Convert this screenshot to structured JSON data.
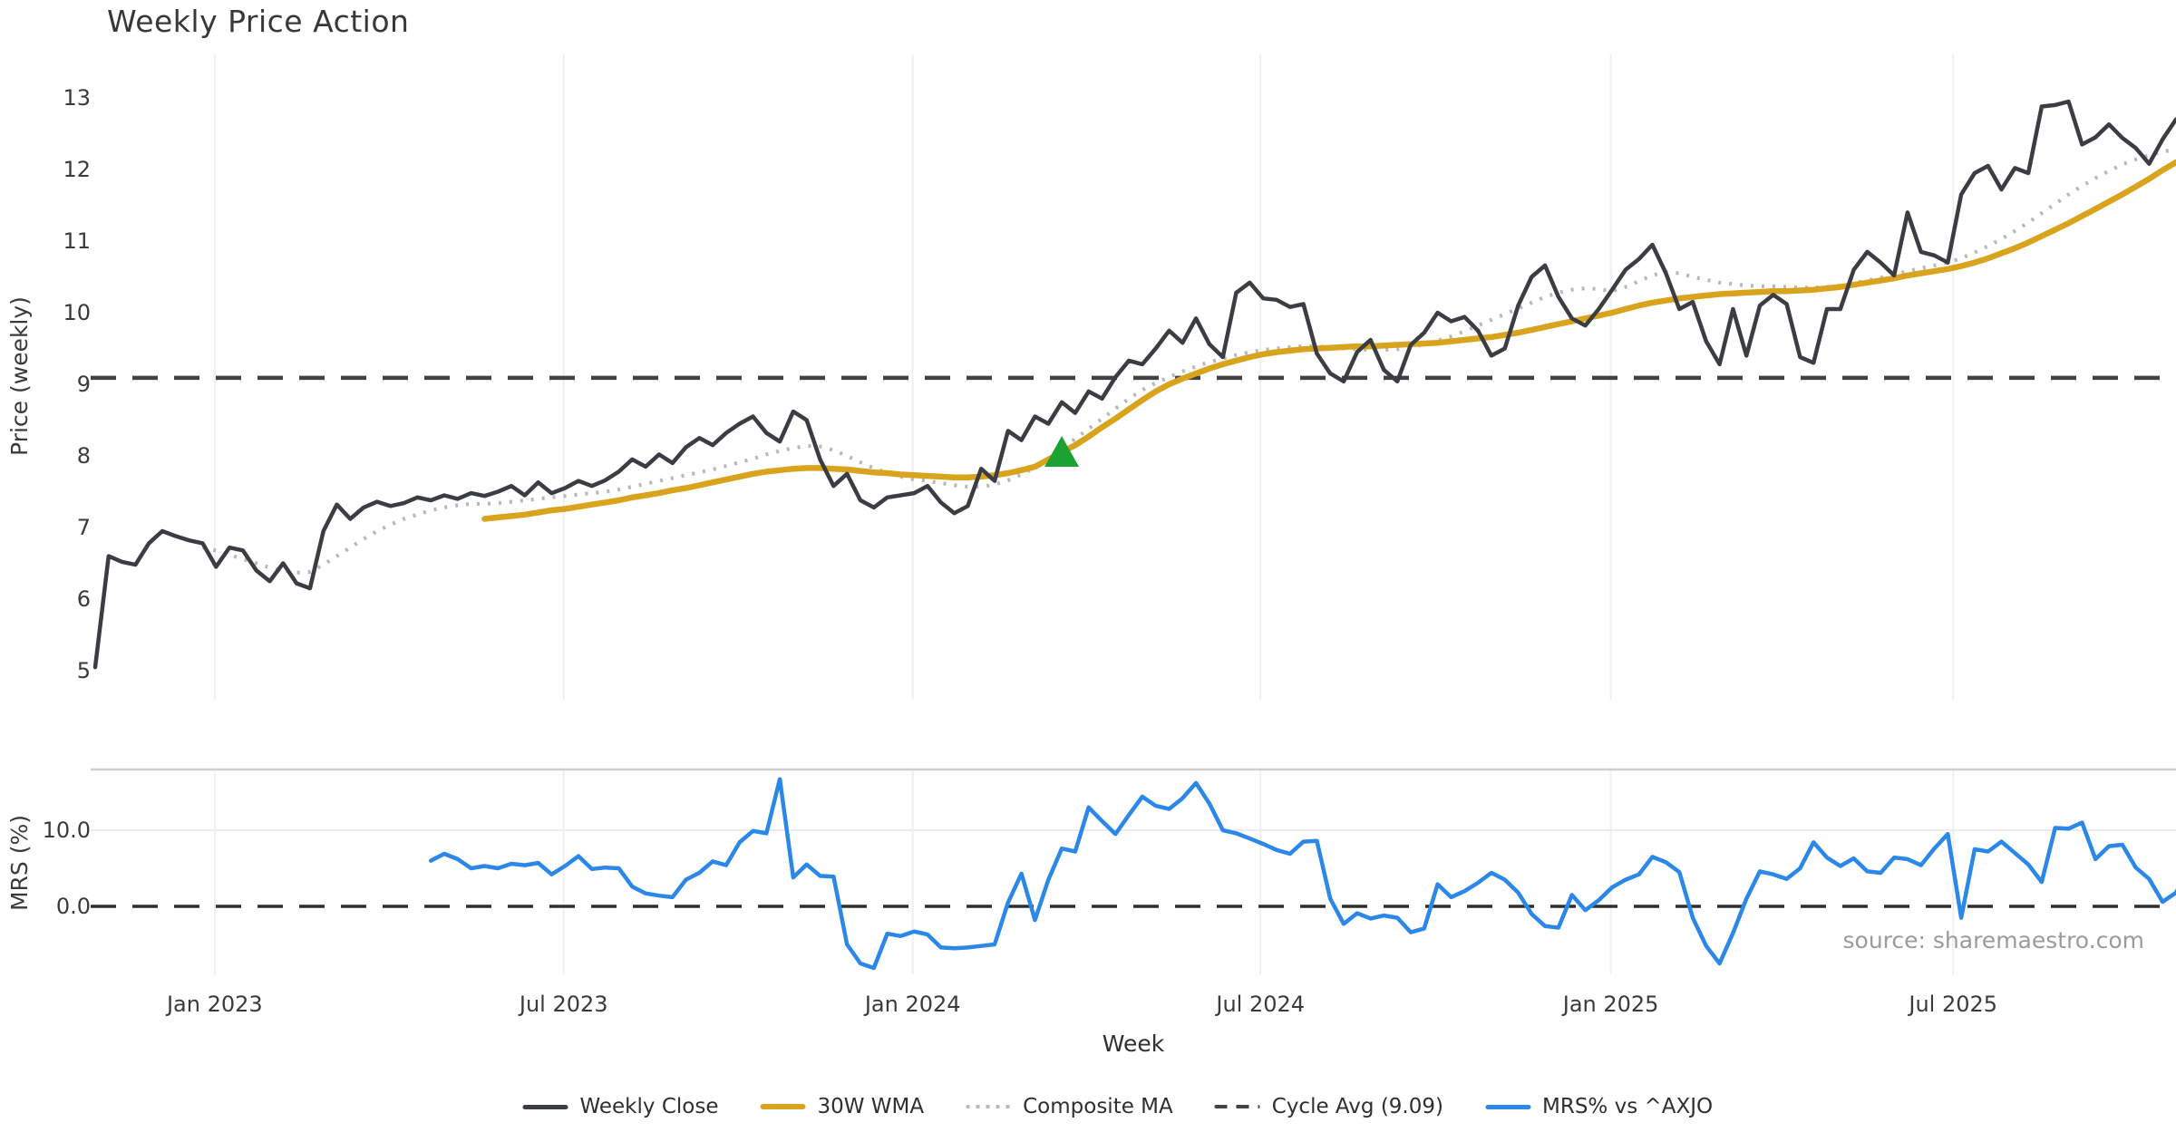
{
  "title": "Weekly Price Action",
  "source_note": "source: sharemaestro.com",
  "chart_data": {
    "type": "line",
    "title": "Weekly Price Action",
    "xlabel": "Week",
    "x_unit": "week_index_from_2022-10-31",
    "x_ticks": [
      {
        "label": "Jan 2023",
        "week": 8.9
      },
      {
        "label": "Jul 2023",
        "week": 34.9
      },
      {
        "label": "Jan 2024",
        "week": 60.9
      },
      {
        "label": "Jul 2024",
        "week": 86.8
      },
      {
        "label": "Jan 2025",
        "week": 112.9
      },
      {
        "label": "Jul 2025",
        "week": 138.4
      }
    ],
    "grid": "vertical-only-faint",
    "legend_position": "bottom-center",
    "panels": [
      {
        "name": "price",
        "ylabel": "Price (weekly)",
        "ylim": [
          4.6,
          13.6
        ],
        "yticks": [
          13,
          12,
          11,
          10,
          9,
          8,
          7,
          6,
          5
        ],
        "series": [
          {
            "name": "Weekly Close",
            "color": "#3a3d41",
            "style": "solid",
            "width": 4.5,
            "start_week": 0,
            "values": [
              5.05,
              6.6,
              6.52,
              6.48,
              6.78,
              6.95,
              6.88,
              6.82,
              6.78,
              6.45,
              6.72,
              6.68,
              6.4,
              6.25,
              6.5,
              6.22,
              6.15,
              6.95,
              7.32,
              7.12,
              7.28,
              7.36,
              7.3,
              7.34,
              7.42,
              7.38,
              7.45,
              7.4,
              7.48,
              7.44,
              7.5,
              7.58,
              7.45,
              7.63,
              7.48,
              7.55,
              7.65,
              7.58,
              7.66,
              7.78,
              7.95,
              7.85,
              8.02,
              7.9,
              8.12,
              8.25,
              8.15,
              8.32,
              8.45,
              8.55,
              8.32,
              8.2,
              8.62,
              8.5,
              7.95,
              7.58,
              7.75,
              7.38,
              7.28,
              7.42,
              7.45,
              7.48,
              7.58,
              7.35,
              7.2,
              7.3,
              7.82,
              7.65,
              8.35,
              8.22,
              8.55,
              8.45,
              8.75,
              8.6,
              8.9,
              8.8,
              9.1,
              9.33,
              9.28,
              9.5,
              9.75,
              9.58,
              9.92,
              9.56,
              9.38,
              10.28,
              10.42,
              10.2,
              10.18,
              10.08,
              10.12,
              9.43,
              9.15,
              9.04,
              9.45,
              9.62,
              9.2,
              9.04,
              9.55,
              9.72,
              10.0,
              9.88,
              9.94,
              9.75,
              9.4,
              9.5,
              10.1,
              10.5,
              10.66,
              10.22,
              9.92,
              9.82,
              10.05,
              10.32,
              10.6,
              10.75,
              10.95,
              10.55,
              10.05,
              10.15,
              9.6,
              9.28,
              10.05,
              9.4,
              10.1,
              10.25,
              10.12,
              9.38,
              9.3,
              10.05,
              10.05,
              10.6,
              10.85,
              10.7,
              10.52,
              11.4,
              10.85,
              10.8,
              10.7,
              11.65,
              11.95,
              12.05,
              11.72,
              12.02,
              11.95,
              12.88,
              12.9,
              12.95,
              12.35,
              12.45,
              12.63,
              12.44,
              12.3,
              12.08,
              12.42,
              12.7
            ]
          },
          {
            "name": "30W WMA",
            "color": "#d9a31d",
            "style": "solid",
            "width": 6.5,
            "start_week": 29,
            "values": [
              7.12,
              7.14,
              7.16,
              7.18,
              7.21,
              7.24,
              7.26,
              7.29,
              7.32,
              7.35,
              7.38,
              7.42,
              7.45,
              7.48,
              7.52,
              7.55,
              7.59,
              7.63,
              7.67,
              7.71,
              7.75,
              7.78,
              7.8,
              7.82,
              7.83,
              7.83,
              7.82,
              7.81,
              7.79,
              7.77,
              7.76,
              7.74,
              7.73,
              7.72,
              7.71,
              7.7,
              7.7,
              7.71,
              7.73,
              7.76,
              7.8,
              7.85,
              7.95,
              8.05,
              8.15,
              8.27,
              8.4,
              8.52,
              8.65,
              8.78,
              8.9,
              9.0,
              9.08,
              9.15,
              9.22,
              9.28,
              9.33,
              9.38,
              9.42,
              9.45,
              9.47,
              9.49,
              9.5,
              9.51,
              9.52,
              9.53,
              9.53,
              9.54,
              9.55,
              9.56,
              9.57,
              9.58,
              9.6,
              9.62,
              9.64,
              9.66,
              9.69,
              9.72,
              9.76,
              9.8,
              9.84,
              9.88,
              9.92,
              9.96,
              10.0,
              10.05,
              10.1,
              10.14,
              10.17,
              10.2,
              10.22,
              10.24,
              10.26,
              10.27,
              10.28,
              10.29,
              10.3,
              10.3,
              10.31,
              10.32,
              10.34,
              10.36,
              10.39,
              10.42,
              10.45,
              10.48,
              10.52,
              10.55,
              10.58,
              10.61,
              10.65,
              10.7,
              10.76,
              10.83,
              10.9,
              10.98,
              11.07,
              11.16,
              11.25,
              11.35,
              11.45,
              11.55,
              11.65,
              11.76,
              11.87,
              11.99,
              12.1
            ]
          },
          {
            "name": "Composite MA",
            "color": "#b9b9b9",
            "style": "dotted",
            "width": 4.2,
            "start_week": 8,
            "values": [
              6.72,
              6.68,
              6.62,
              6.56,
              6.5,
              6.44,
              6.4,
              6.37,
              6.38,
              6.48,
              6.6,
              6.72,
              6.84,
              6.95,
              7.04,
              7.12,
              7.18,
              7.24,
              7.28,
              7.31,
              7.33,
              7.33,
              7.34,
              7.36,
              7.38,
              7.4,
              7.42,
              7.44,
              7.46,
              7.48,
              7.5,
              7.53,
              7.57,
              7.61,
              7.65,
              7.69,
              7.73,
              7.77,
              7.81,
              7.86,
              7.91,
              7.96,
              8.02,
              8.07,
              8.11,
              8.14,
              8.13,
              8.08,
              8.0,
              7.91,
              7.83,
              7.76,
              7.71,
              7.67,
              7.65,
              7.62,
              7.59,
              7.57,
              7.57,
              7.6,
              7.66,
              7.74,
              7.84,
              7.96,
              8.1,
              8.24,
              8.38,
              8.52,
              8.66,
              8.8,
              8.92,
              9.02,
              9.1,
              9.18,
              9.25,
              9.31,
              9.36,
              9.41,
              9.45,
              9.48,
              9.5,
              9.52,
              9.53,
              9.53,
              9.52,
              9.5,
              9.49,
              9.48,
              9.48,
              9.49,
              9.52,
              9.56,
              9.61,
              9.67,
              9.74,
              9.82,
              9.9,
              9.98,
              10.06,
              10.14,
              10.22,
              10.28,
              10.32,
              10.34,
              10.33,
              10.3,
              10.36,
              10.44,
              10.52,
              10.57,
              10.55,
              10.5,
              10.46,
              10.42,
              10.4,
              10.38,
              10.37,
              10.37,
              10.36,
              10.35,
              10.35,
              10.36,
              10.38,
              10.41,
              10.45,
              10.49,
              10.53,
              10.58,
              10.62,
              10.66,
              10.7,
              10.76,
              10.84,
              10.93,
              11.03,
              11.14,
              11.26,
              11.39,
              11.52,
              11.65,
              11.77,
              11.88,
              11.98,
              12.07,
              12.14,
              12.2,
              12.25,
              12.28
            ]
          },
          {
            "name": "Cycle Avg (9.09)",
            "color": "#424242",
            "style": "dashed",
            "width": 4.5,
            "hline": 9.09
          }
        ],
        "marker": {
          "shape": "triangle-up",
          "name": "buy-signal",
          "color": "#1ba233",
          "week": 72,
          "value": 8.05
        }
      },
      {
        "name": "mrs",
        "ylabel": "MRS (%)",
        "ylim": [
          -9,
          18
        ],
        "yticks": [
          {
            "label": "10.0",
            "value": 10
          },
          {
            "label": "0.0",
            "value": 0
          }
        ],
        "series": [
          {
            "name": "MRS% vs ^AXJO",
            "color": "#2b87e8",
            "style": "solid",
            "width": 4.5,
            "start_week": 25,
            "values": [
              6.0,
              6.9,
              6.2,
              5.0,
              5.3,
              5.0,
              5.6,
              5.4,
              5.7,
              4.2,
              5.3,
              6.6,
              4.9,
              5.1,
              5.0,
              2.6,
              1.7,
              1.4,
              1.2,
              3.5,
              4.4,
              5.9,
              5.4,
              8.4,
              9.9,
              9.6,
              16.7,
              3.8,
              5.5,
              4.0,
              3.9,
              -5.0,
              -7.5,
              -8.1,
              -3.6,
              -3.9,
              -3.3,
              -3.7,
              -5.4,
              -5.5,
              -5.4,
              -5.2,
              -5.0,
              0.5,
              4.3,
              -1.8,
              3.5,
              7.6,
              7.2,
              13.0,
              11.2,
              9.5,
              12.0,
              14.4,
              13.2,
              12.8,
              14.2,
              16.2,
              13.5,
              10.0,
              9.6,
              8.9,
              8.2,
              7.4,
              6.9,
              8.5,
              8.6,
              1.0,
              -2.3,
              -0.9,
              -1.6,
              -1.2,
              -1.5,
              -3.4,
              -2.9,
              2.9,
              1.2,
              2.0,
              3.1,
              4.4,
              3.5,
              1.8,
              -1.0,
              -2.6,
              -2.8,
              1.5,
              -0.5,
              0.8,
              2.5,
              3.5,
              4.2,
              6.5,
              5.8,
              4.5,
              -1.5,
              -5.2,
              -7.5,
              -3.5,
              1.0,
              4.6,
              4.2,
              3.6,
              5.0,
              8.4,
              6.4,
              5.3,
              6.3,
              4.6,
              4.4,
              6.4,
              6.2,
              5.4,
              7.6,
              9.5,
              -1.5,
              7.5,
              7.2,
              8.5,
              7.0,
              5.5,
              3.2,
              10.3,
              10.2,
              11.0,
              6.2,
              7.9,
              8.1,
              5.1,
              3.6,
              0.6,
              1.8,
              5.0
            ]
          },
          {
            "name": "zero-line",
            "color": "#2f2f2f",
            "style": "dashed",
            "width": 3.5,
            "hline": 0
          }
        ]
      }
    ],
    "legend": [
      {
        "label": "Weekly Close",
        "color": "#3a3d41",
        "style": "solid",
        "thickness": 5
      },
      {
        "label": "30W WMA",
        "color": "#d9a31d",
        "style": "solid",
        "thickness": 6
      },
      {
        "label": "Composite MA",
        "color": "#b9b9b9",
        "style": "dotted",
        "thickness": 4
      },
      {
        "label": "Cycle Avg (9.09)",
        "color": "#424242",
        "style": "dashed",
        "thickness": 4
      },
      {
        "label": "MRS% vs ^AXJO",
        "color": "#2b87e8",
        "style": "solid",
        "thickness": 5
      }
    ],
    "colors": {
      "background": "#ffffff",
      "grid": "#eef0f4",
      "panel_spine": "#cfcfcf",
      "tick_text": "#3a3a3a",
      "source_text": "#9b9b9b",
      "marker_green": "#1ba233"
    }
  }
}
